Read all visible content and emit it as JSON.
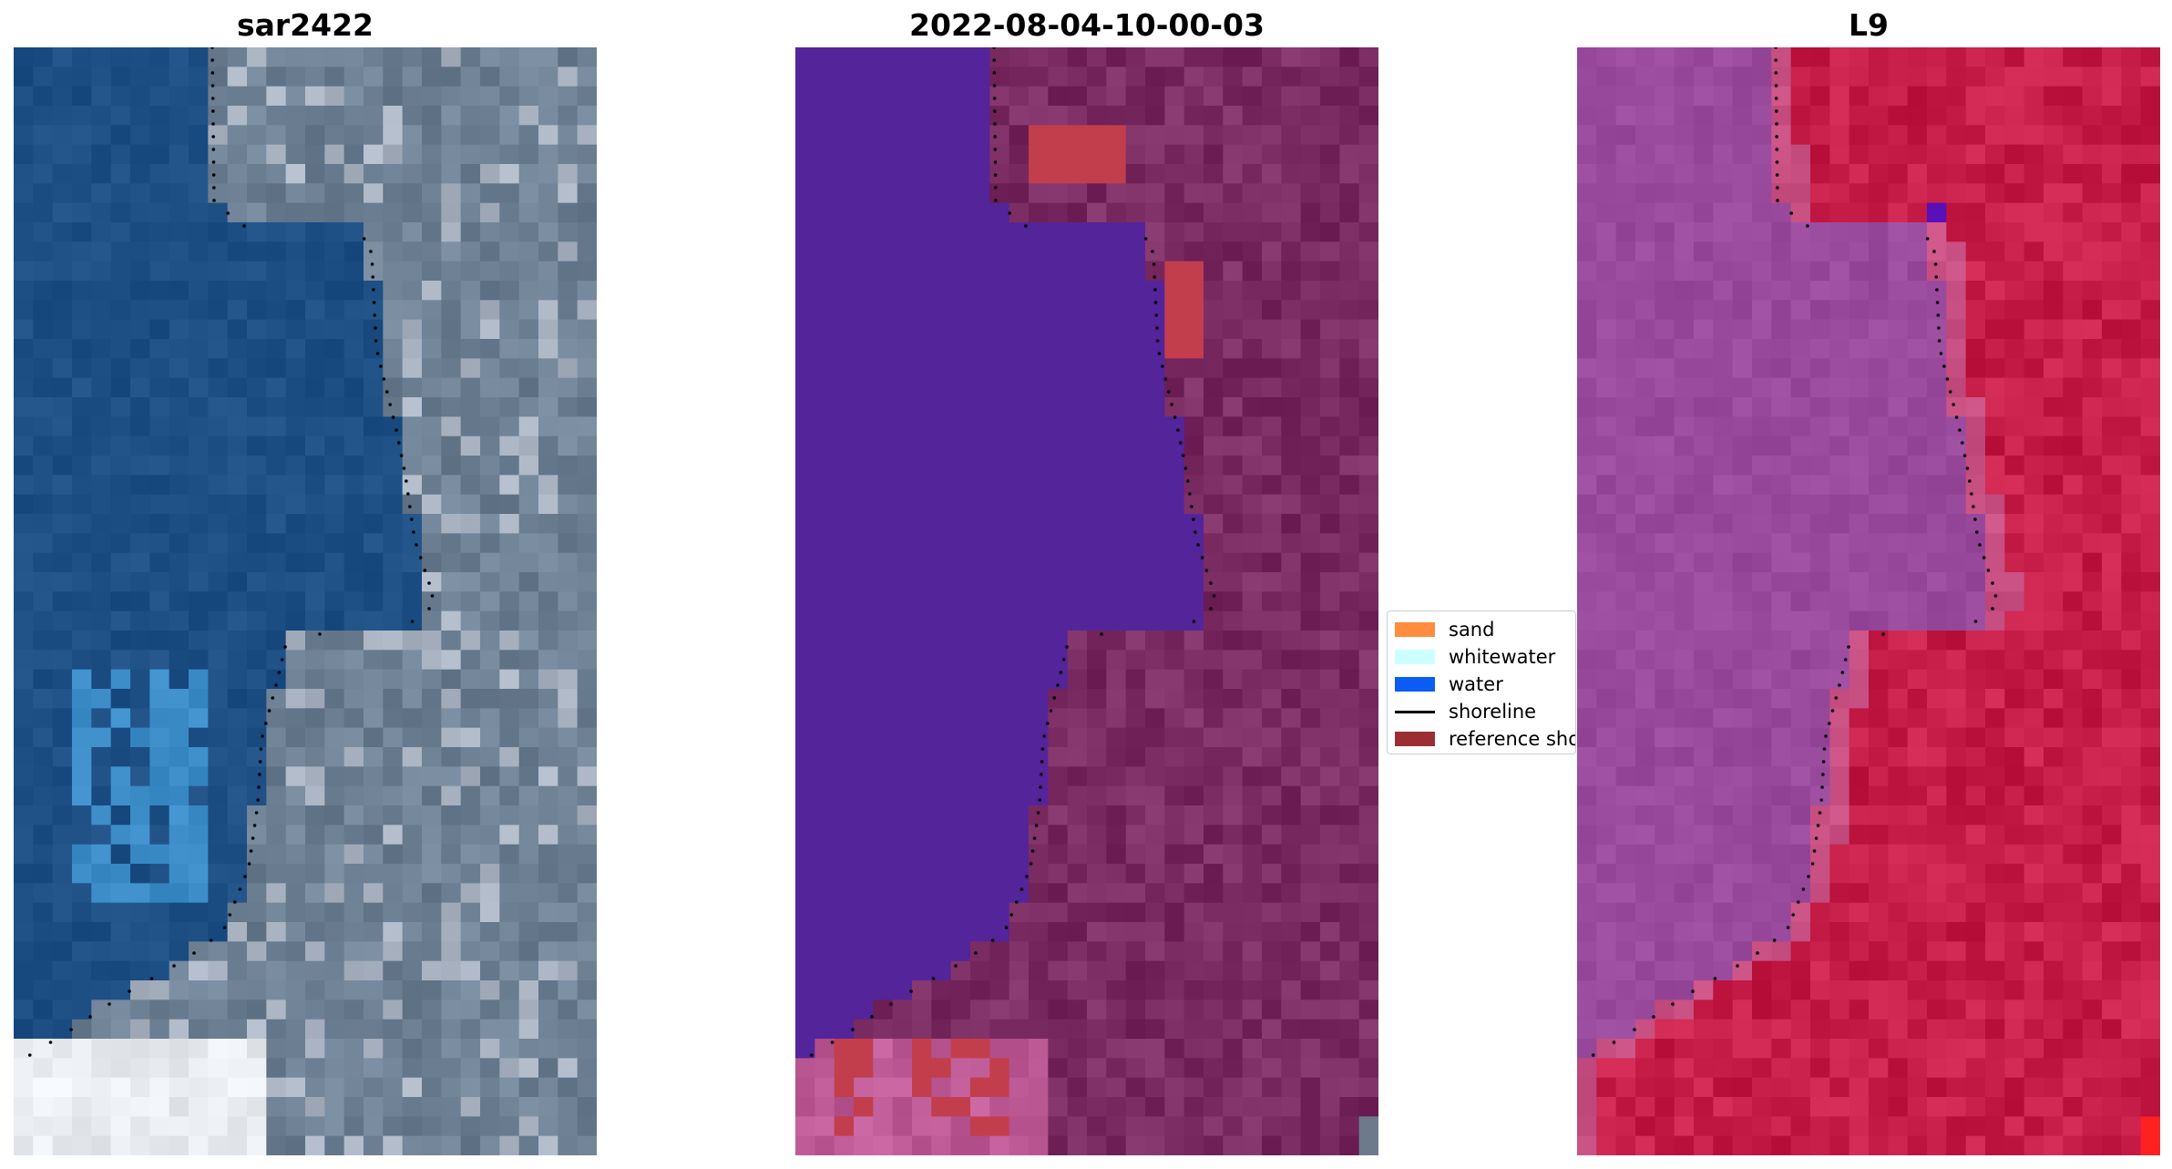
{
  "panels": [
    {
      "title": "sar2422",
      "kind": "rgb"
    },
    {
      "title": "2022-08-04-10-00-03",
      "kind": "classified"
    },
    {
      "title": "L9",
      "kind": "index"
    }
  ],
  "legend": {
    "items": [
      {
        "label": "sand",
        "color": "#ff8c3f"
      },
      {
        "label": "whitewater",
        "color": "#ccffff"
      },
      {
        "label": "water",
        "color": "#0b5cf5"
      },
      {
        "label": "shoreline",
        "color": "#000000",
        "type": "line"
      },
      {
        "label": "reference sho",
        "color": "#9b2d35"
      }
    ]
  },
  "colors": {
    "rgb_water": "#1d4f85",
    "rgb_land": "#6d8094",
    "rgb_surf": "#e8ecf0",
    "classified_water": "#54249a",
    "classified_land": "#7a2b62",
    "classified_sand": "#c23e4c",
    "index_water": "#9a4a9d",
    "index_land": "#c51c48",
    "shoreline": "#000000"
  }
}
